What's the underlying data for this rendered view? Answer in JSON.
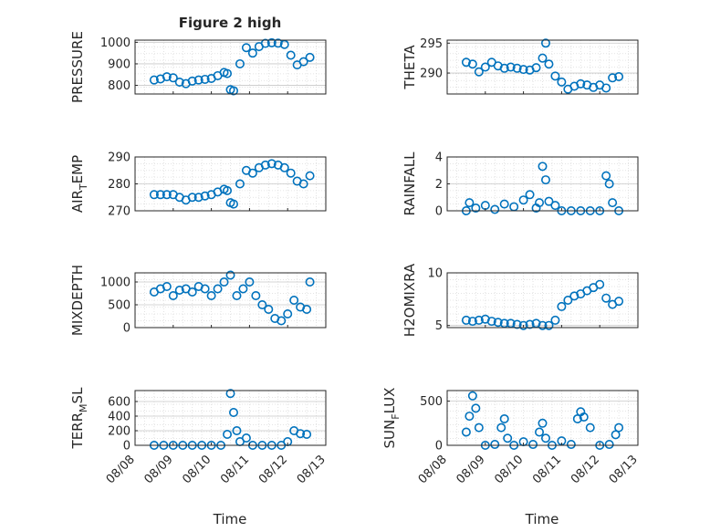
{
  "figure_title": "Figure 2 high",
  "colors": {
    "marker": "#0072BD",
    "grid": "#dcdcdc",
    "axis": "#262626"
  },
  "chart_data": [
    {
      "id": "pressure",
      "type": "scatter",
      "ylabel": "PRESSURE",
      "ylim": [
        760,
        1010
      ],
      "yticks": [
        800,
        900,
        1000
      ],
      "xlim": [
        "08/08",
        "08/13"
      ],
      "x": [
        "08/08 12:00",
        "08/08 16:00",
        "08/08 20:00",
        "08/09 00:00",
        "08/09 04:00",
        "08/09 08:00",
        "08/09 12:00",
        "08/09 16:00",
        "08/09 20:00",
        "08/10 00:00",
        "08/10 04:00",
        "08/10 08:00",
        "08/10 10:00",
        "08/10 12:00",
        "08/10 14:00",
        "08/10 18:00",
        "08/10 22:00",
        "08/11 02:00",
        "08/11 06:00",
        "08/11 10:00",
        "08/11 14:00",
        "08/11 18:00",
        "08/11 22:00",
        "08/12 02:00",
        "08/12 06:00",
        "08/12 10:00",
        "08/12 14:00"
      ],
      "y": [
        825,
        830,
        840,
        835,
        815,
        808,
        820,
        825,
        828,
        832,
        845,
        860,
        855,
        780,
        775,
        900,
        975,
        950,
        980,
        995,
        998,
        996,
        990,
        940,
        895,
        910,
        930
      ]
    },
    {
      "id": "theta",
      "type": "scatter",
      "ylabel": "THETA",
      "ylim": [
        286.5,
        295.5
      ],
      "yticks": [
        290,
        295
      ],
      "xlim": [
        "08/08",
        "08/13"
      ],
      "x": [
        "08/08 12:00",
        "08/08 16:00",
        "08/08 20:00",
        "08/09 00:00",
        "08/09 04:00",
        "08/09 08:00",
        "08/09 12:00",
        "08/09 16:00",
        "08/09 20:00",
        "08/10 00:00",
        "08/10 04:00",
        "08/10 08:00",
        "08/10 12:00",
        "08/10 14:00",
        "08/10 16:00",
        "08/10 20:00",
        "08/11 00:00",
        "08/11 04:00",
        "08/11 08:00",
        "08/11 12:00",
        "08/11 16:00",
        "08/11 20:00",
        "08/12 00:00",
        "08/12 04:00",
        "08/12 08:00",
        "08/12 12:00"
      ],
      "y": [
        291.8,
        291.5,
        290.2,
        291.0,
        291.8,
        291.2,
        290.8,
        291.0,
        290.8,
        290.6,
        290.5,
        290.9,
        292.5,
        295.0,
        291.5,
        289.5,
        288.5,
        287.3,
        287.8,
        288.2,
        288.0,
        287.6,
        288.0,
        287.5,
        289.2,
        289.4
      ]
    },
    {
      "id": "air_temp",
      "type": "scatter",
      "ylabel": "AIR_TEMP",
      "ylabel_sub": "T",
      "ylim": [
        270,
        290
      ],
      "yticks": [
        270,
        280,
        290
      ],
      "xlim": [
        "08/08",
        "08/13"
      ],
      "x": [
        "08/08 12:00",
        "08/08 16:00",
        "08/08 20:00",
        "08/09 00:00",
        "08/09 04:00",
        "08/09 08:00",
        "08/09 12:00",
        "08/09 16:00",
        "08/09 20:00",
        "08/10 00:00",
        "08/10 04:00",
        "08/10 08:00",
        "08/10 10:00",
        "08/10 12:00",
        "08/10 14:00",
        "08/10 18:00",
        "08/10 22:00",
        "08/11 02:00",
        "08/11 06:00",
        "08/11 10:00",
        "08/11 14:00",
        "08/11 18:00",
        "08/11 22:00",
        "08/12 02:00",
        "08/12 06:00",
        "08/12 10:00",
        "08/12 14:00"
      ],
      "y": [
        276,
        276,
        276,
        276,
        275,
        274,
        275,
        275,
        275.5,
        276,
        277,
        278,
        277.5,
        273,
        272.5,
        280,
        285,
        284,
        286,
        287,
        287.5,
        287,
        286,
        284,
        281,
        280,
        283
      ]
    },
    {
      "id": "rainfall",
      "type": "scatter",
      "ylabel": "RAINFALL",
      "ylim": [
        0,
        4
      ],
      "yticks": [
        0,
        2,
        4
      ],
      "xlim": [
        "08/08",
        "08/13"
      ],
      "x": [
        "08/08 12:00",
        "08/08 14:00",
        "08/08 18:00",
        "08/09 00:00",
        "08/09 06:00",
        "08/09 12:00",
        "08/09 18:00",
        "08/10 00:00",
        "08/10 04:00",
        "08/10 08:00",
        "08/10 10:00",
        "08/10 12:00",
        "08/10 14:00",
        "08/10 16:00",
        "08/10 20:00",
        "08/11 00:00",
        "08/11 06:00",
        "08/11 12:00",
        "08/11 18:00",
        "08/12 00:00",
        "08/12 04:00",
        "08/12 06:00",
        "08/12 08:00",
        "08/12 12:00"
      ],
      "y": [
        0,
        0.6,
        0.2,
        0.4,
        0.1,
        0.5,
        0.3,
        0.8,
        1.2,
        0.2,
        0.6,
        3.3,
        2.3,
        0.7,
        0.4,
        0,
        0,
        0,
        0,
        0,
        2.6,
        2.0,
        0.6,
        0
      ]
    },
    {
      "id": "mixdepth",
      "type": "scatter",
      "ylabel": "MIXDEPTH",
      "ylim": [
        0,
        1200
      ],
      "yticks": [
        0,
        500,
        1000
      ],
      "xlim": [
        "08/08",
        "08/13"
      ],
      "x": [
        "08/08 12:00",
        "08/08 16:00",
        "08/08 20:00",
        "08/09 00:00",
        "08/09 04:00",
        "08/09 08:00",
        "08/09 12:00",
        "08/09 16:00",
        "08/09 20:00",
        "08/10 00:00",
        "08/10 04:00",
        "08/10 08:00",
        "08/10 12:00",
        "08/10 16:00",
        "08/10 20:00",
        "08/11 00:00",
        "08/11 04:00",
        "08/11 08:00",
        "08/11 12:00",
        "08/11 16:00",
        "08/11 20:00",
        "08/12 00:00",
        "08/12 04:00",
        "08/12 08:00",
        "08/12 12:00",
        "08/12 14:00"
      ],
      "y": [
        780,
        850,
        900,
        700,
        820,
        850,
        780,
        900,
        850,
        700,
        850,
        1000,
        1150,
        700,
        850,
        1000,
        700,
        500,
        400,
        200,
        150,
        300,
        600,
        450,
        400,
        1000
      ]
    },
    {
      "id": "h2omixra",
      "type": "scatter",
      "ylabel": "H2OMIXRA",
      "ylim": [
        4.8,
        10
      ],
      "yticks": [
        5,
        10
      ],
      "xlim": [
        "08/08",
        "08/13"
      ],
      "x": [
        "08/08 12:00",
        "08/08 16:00",
        "08/08 20:00",
        "08/09 00:00",
        "08/09 04:00",
        "08/09 08:00",
        "08/09 12:00",
        "08/09 16:00",
        "08/09 20:00",
        "08/10 00:00",
        "08/10 04:00",
        "08/10 08:00",
        "08/10 12:00",
        "08/10 16:00",
        "08/10 20:00",
        "08/11 00:00",
        "08/11 04:00",
        "08/11 08:00",
        "08/11 12:00",
        "08/11 16:00",
        "08/11 20:00",
        "08/12 00:00",
        "08/12 04:00",
        "08/12 08:00",
        "08/12 12:00"
      ],
      "y": [
        5.5,
        5.4,
        5.5,
        5.6,
        5.4,
        5.3,
        5.2,
        5.2,
        5.1,
        5.0,
        5.1,
        5.2,
        5.0,
        5.0,
        5.5,
        6.8,
        7.4,
        7.8,
        8.0,
        8.3,
        8.6,
        8.9,
        7.6,
        7.0,
        7.3
      ]
    },
    {
      "id": "terr_msl",
      "type": "scatter",
      "ylabel": "TERR_MSL",
      "ylabel_sub": "M",
      "ylim": [
        0,
        750
      ],
      "yticks": [
        0,
        200,
        400,
        600
      ],
      "xlim": [
        "08/08",
        "08/13"
      ],
      "x": [
        "08/08 12:00",
        "08/08 18:00",
        "08/09 00:00",
        "08/09 06:00",
        "08/09 12:00",
        "08/09 18:00",
        "08/10 00:00",
        "08/10 06:00",
        "08/10 10:00",
        "08/10 12:00",
        "08/10 14:00",
        "08/10 16:00",
        "08/10 18:00",
        "08/10 22:00",
        "08/11 02:00",
        "08/11 08:00",
        "08/11 14:00",
        "08/11 20:00",
        "08/12 00:00",
        "08/12 04:00",
        "08/12 08:00",
        "08/12 12:00"
      ],
      "y": [
        0,
        0,
        0,
        0,
        0,
        0,
        0,
        0,
        150,
        710,
        450,
        200,
        50,
        100,
        0,
        0,
        0,
        0,
        50,
        200,
        160,
        150
      ]
    },
    {
      "id": "sun_flux",
      "type": "scatter",
      "ylabel": "SUN_FLUX",
      "ylabel_sub": "F",
      "ylim": [
        0,
        620
      ],
      "yticks": [
        0,
        500
      ],
      "xlim": [
        "08/08",
        "08/13"
      ],
      "x": [
        "08/08 12:00",
        "08/08 14:00",
        "08/08 16:00",
        "08/08 18:00",
        "08/08 20:00",
        "08/09 00:00",
        "08/09 06:00",
        "08/09 10:00",
        "08/09 12:00",
        "08/09 14:00",
        "08/09 18:00",
        "08/10 00:00",
        "08/10 06:00",
        "08/10 10:00",
        "08/10 12:00",
        "08/10 14:00",
        "08/10 18:00",
        "08/11 00:00",
        "08/11 06:00",
        "08/11 10:00",
        "08/11 12:00",
        "08/11 14:00",
        "08/11 18:00",
        "08/12 00:00",
        "08/12 06:00",
        "08/12 10:00",
        "08/12 12:00"
      ],
      "y": [
        150,
        330,
        560,
        420,
        200,
        0,
        10,
        200,
        300,
        80,
        0,
        40,
        10,
        150,
        250,
        80,
        0,
        50,
        10,
        300,
        380,
        320,
        200,
        0,
        10,
        120,
        200
      ]
    }
  ],
  "x_ticks": [
    "08/08",
    "08/09",
    "08/10",
    "08/11",
    "08/12",
    "08/13"
  ],
  "xlabel": "Time"
}
